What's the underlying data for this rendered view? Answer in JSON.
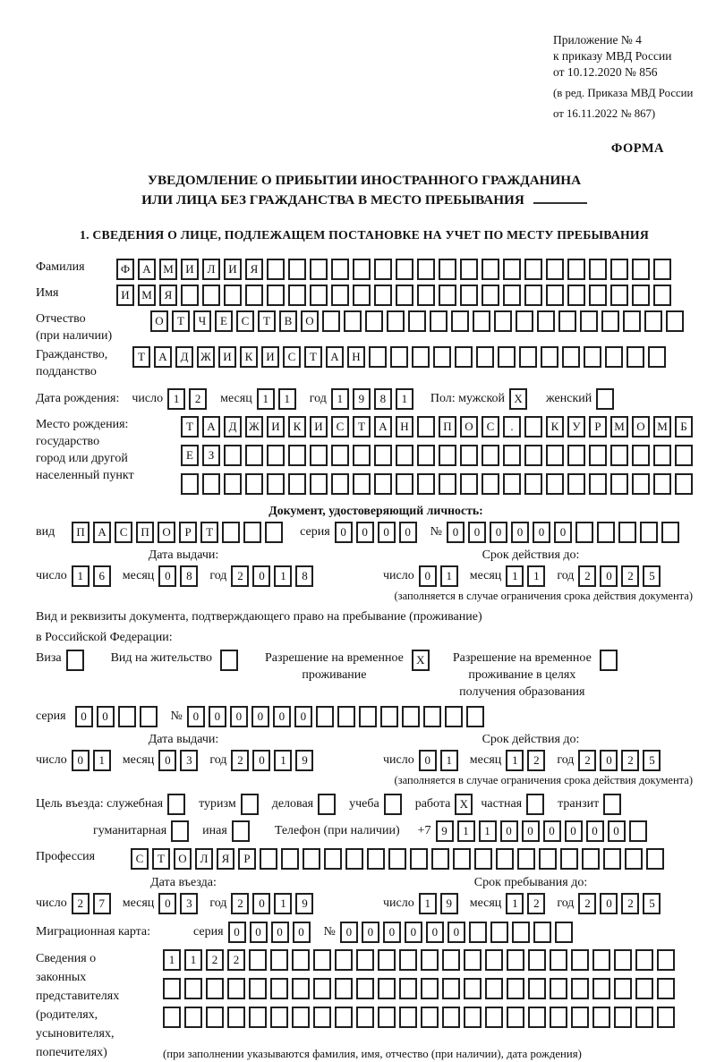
{
  "colors": {
    "paper": "#ffffff",
    "ink": "#111111"
  },
  "header": {
    "appendix_lines": [
      "Приложение № 4",
      "к приказу МВД России",
      "от 10.12.2020 № 856"
    ],
    "amendment_lines": [
      "(в ред. Приказа МВД России",
      "от 16.11.2022 № 867)"
    ],
    "forma": "ФОРМА"
  },
  "title": {
    "line1": "УВЕДОМЛЕНИЕ О ПРИБЫТИИ ИНОСТРАННОГО ГРАЖДАНИНА",
    "line2": "ИЛИ ЛИЦА БЕЗ ГРАЖДАНСТВА В МЕСТО ПРЕБЫВАНИЯ",
    "section1": "1. СВЕДЕНИЯ О ЛИЦЕ, ПОДЛЕЖАЩЕМ ПОСТАНОВКЕ НА УЧЕТ ПО МЕСТУ ПРЕБЫВАНИЯ"
  },
  "labels": {
    "surname": "Фамилия",
    "name": "Имя",
    "patronymic_l1": "Отчество",
    "patronymic_l2": "(при наличии)",
    "citizenship_l1": "Гражданство,",
    "citizenship_l2": "подданство",
    "birth_date": "Дата рождения:",
    "day": "число",
    "month": "месяц",
    "year": "год",
    "sex": "Пол: мужской",
    "female": "женский",
    "birth_place": "Место рождения:",
    "state": "государство",
    "city_l1": "город или другой",
    "city_l2": "населенный пункт",
    "identity_doc_heading": "Документ, удостоверяющий личность:",
    "doc_type": "вид",
    "series": "серия",
    "number": "№",
    "issue_date": "Дата выдачи:",
    "valid_until": "Срок действия до:",
    "restriction_note": "(заполняется в случае ограничения срока действия документа)",
    "residence_doc_l1": "Вид и реквизиты документа, подтверждающего право на пребывание (проживание)",
    "residence_doc_l2": "в Российской Федерации:",
    "visa": "Виза",
    "residence_permit": "Вид на жительство",
    "temp_permit_l1": "Разрешение на временное",
    "temp_permit_l2": "проживание",
    "temp_edu_l1": "Разрешение на временное",
    "temp_edu_l2": "проживание в целях",
    "temp_edu_l3": "получения образования",
    "purpose": "Цель въезда: служебная",
    "purpose_tourism": "туризм",
    "purpose_business": "деловая",
    "purpose_study": "учеба",
    "purpose_work": "работа",
    "purpose_private": "частная",
    "purpose_transit": "транзит",
    "purpose_humanitarian": "гуманитарная",
    "purpose_other": "иная",
    "phone": "Телефон (при наличии)",
    "phone_prefix": "+7",
    "profession": "Профессия",
    "entry_date": "Дата въезда:",
    "stay_until": "Срок пребывания до:",
    "migration_card": "Миграционная карта:",
    "reps_l1": "Сведения о",
    "reps_l2": "законных",
    "reps_l3": "представителях",
    "reps_l4": "(родителях,",
    "reps_l5": "усыновителях,",
    "reps_l6": "попечителях)",
    "reps_note": "(при заполнении указываются фамилия, имя, отчество (при наличии), дата рождения)"
  },
  "fields": {
    "surname": {
      "text": "ФАМИЛИЯ",
      "count": 26
    },
    "name": {
      "text": "ИМЯ",
      "count": 26
    },
    "patronymic": {
      "text": "ОТЧЕСТВО",
      "count": 25
    },
    "citizenship": {
      "text": "ТАДЖИКИСТАН",
      "count": 25
    },
    "birth_day": {
      "text": "12",
      "count": 2
    },
    "birth_month": {
      "text": "11",
      "count": 2
    },
    "birth_year": {
      "text": "1981",
      "count": 4
    },
    "sex_male": {
      "text": "X",
      "count": 1
    },
    "sex_female": {
      "text": "",
      "count": 1
    },
    "birth_place_row1": {
      "text": "ТАДЖИКИСТАН ПОС. КУРМОМБ",
      "count": 24
    },
    "birth_place_row2": {
      "text": "ЕЗ",
      "count": 24
    },
    "birth_place_row3": {
      "text": "",
      "count": 24
    },
    "id_doc_type": {
      "text": "ПАСПОРТ",
      "count": 10
    },
    "id_doc_series": {
      "text": "0000",
      "count": 4
    },
    "id_doc_number": {
      "text": "000000",
      "count": 11
    },
    "id_issue_day": {
      "text": "16",
      "count": 2
    },
    "id_issue_month": {
      "text": "08",
      "count": 2
    },
    "id_issue_year": {
      "text": "2018",
      "count": 4
    },
    "id_valid_day": {
      "text": "01",
      "count": 2
    },
    "id_valid_month": {
      "text": "11",
      "count": 2
    },
    "id_valid_year": {
      "text": "2025",
      "count": 4
    },
    "cb_visa": {
      "text": "",
      "count": 1
    },
    "cb_residence_permit": {
      "text": "",
      "count": 1
    },
    "cb_temp_permit": {
      "text": "X",
      "count": 1
    },
    "cb_temp_edu": {
      "text": "",
      "count": 1
    },
    "perm_series": {
      "text": "00",
      "count": 4
    },
    "perm_number": {
      "text": "000000",
      "count": 14
    },
    "perm_issue_day": {
      "text": "01",
      "count": 2
    },
    "perm_issue_month": {
      "text": "03",
      "count": 2
    },
    "perm_issue_year": {
      "text": "2019",
      "count": 4
    },
    "perm_valid_day": {
      "text": "01",
      "count": 2
    },
    "perm_valid_month": {
      "text": "12",
      "count": 2
    },
    "perm_valid_year": {
      "text": "2025",
      "count": 4
    },
    "cb_official": {
      "text": "",
      "count": 1
    },
    "cb_tourism": {
      "text": "",
      "count": 1
    },
    "cb_business": {
      "text": "",
      "count": 1
    },
    "cb_study": {
      "text": "",
      "count": 1
    },
    "cb_work": {
      "text": "X",
      "count": 1
    },
    "cb_private": {
      "text": "",
      "count": 1
    },
    "cb_transit": {
      "text": "",
      "count": 1
    },
    "cb_humanitarian": {
      "text": "",
      "count": 1
    },
    "cb_other": {
      "text": "",
      "count": 1
    },
    "phone": {
      "text": "911000000",
      "count": 10
    },
    "profession": {
      "text": "СТОЛЯР",
      "count": 25
    },
    "entry_day": {
      "text": "27",
      "count": 2
    },
    "entry_month": {
      "text": "03",
      "count": 2
    },
    "entry_year": {
      "text": "2019",
      "count": 4
    },
    "stay_day": {
      "text": "19",
      "count": 2
    },
    "stay_month": {
      "text": "12",
      "count": 2
    },
    "stay_year": {
      "text": "2025",
      "count": 4
    },
    "mig_series": {
      "text": "0000",
      "count": 4
    },
    "mig_number": {
      "text": "000000",
      "count": 11
    },
    "reps_row1": {
      "text": "1122",
      "count": 24
    },
    "reps_row2": {
      "text": "",
      "count": 24
    },
    "reps_row3": {
      "text": "",
      "count": 24
    }
  }
}
